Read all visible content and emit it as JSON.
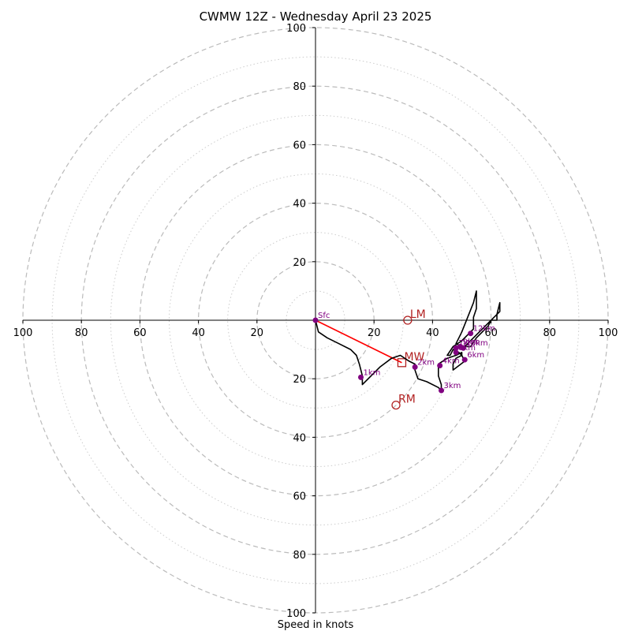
{
  "chart_data": {
    "type": "line",
    "title": "CWMW 12Z - Wednesday April 23 2025",
    "xlabel": "Speed in knots",
    "xlim": [
      -100,
      100
    ],
    "ylim": [
      -100,
      100
    ],
    "ring_labels": [
      "20",
      "40",
      "60",
      "80",
      "100"
    ],
    "major_rings": [
      20,
      40,
      60,
      80,
      100
    ],
    "minor_rings": [
      10,
      30,
      50,
      70,
      90
    ],
    "grid": true,
    "hodograph": {
      "color": "#000000",
      "points": [
        [
          0,
          0
        ],
        [
          1,
          -4
        ],
        [
          4,
          -6
        ],
        [
          8,
          -8
        ],
        [
          12,
          -10
        ],
        [
          14,
          -12
        ],
        [
          15,
          -15
        ],
        [
          16,
          -19
        ],
        [
          16,
          -22
        ],
        [
          18,
          -20
        ],
        [
          22,
          -16
        ],
        [
          26,
          -13
        ],
        [
          29,
          -12
        ],
        [
          32,
          -14
        ],
        [
          34,
          -15
        ],
        [
          34,
          -17
        ],
        [
          35,
          -20
        ],
        [
          38,
          -21
        ],
        [
          42,
          -23
        ],
        [
          43,
          -24
        ],
        [
          43,
          -22
        ],
        [
          42,
          -19
        ],
        [
          42,
          -17
        ],
        [
          42,
          -15
        ],
        [
          45,
          -13
        ],
        [
          48,
          -12
        ],
        [
          50,
          -11
        ],
        [
          50,
          -12
        ],
        [
          48,
          -13
        ],
        [
          47,
          -15
        ],
        [
          47,
          -17
        ],
        [
          51,
          -14
        ],
        [
          50,
          -12
        ],
        [
          49,
          -11
        ],
        [
          47,
          -10
        ],
        [
          46,
          -12
        ],
        [
          45,
          -12
        ],
        [
          47,
          -9
        ],
        [
          50,
          -7
        ],
        [
          52,
          -5
        ],
        [
          54,
          -3
        ],
        [
          54,
          1
        ],
        [
          55,
          4
        ],
        [
          55,
          10
        ],
        [
          54,
          6
        ],
        [
          52,
          1
        ],
        [
          50,
          -4
        ],
        [
          49,
          -6
        ],
        [
          48,
          -8
        ],
        [
          50,
          -9
        ],
        [
          53,
          -9
        ],
        [
          55,
          -6
        ],
        [
          57,
          -4
        ],
        [
          59,
          -2
        ],
        [
          60,
          0
        ],
        [
          61,
          1
        ],
        [
          63,
          3
        ],
        [
          63,
          6
        ],
        [
          62,
          2
        ],
        [
          62,
          0
        ],
        [
          60,
          0
        ],
        [
          58,
          -2
        ],
        [
          55,
          -5
        ],
        [
          53,
          -7
        ],
        [
          51,
          -9
        ]
      ]
    },
    "height_markers": [
      {
        "label": "Sfc",
        "x": 0,
        "y": 0
      },
      {
        "label": "1km",
        "x": 15.5,
        "y": -19.5
      },
      {
        "label": "2km",
        "x": 34,
        "y": -16
      },
      {
        "label": "3km",
        "x": 43,
        "y": -24
      },
      {
        "label": "4km",
        "x": 42.5,
        "y": -15.5
      },
      {
        "label": "6km",
        "x": 51,
        "y": -13.5
      },
      {
        "label": "7km",
        "x": 48,
        "y": -9.5
      },
      {
        "label": "8km",
        "x": 48,
        "y": -11
      },
      {
        "label": "9km",
        "x": 49.5,
        "y": -9
      },
      {
        "label": "10km",
        "x": 50.5,
        "y": -9.5
      },
      {
        "label": "12km",
        "x": 53,
        "y": -4.5
      }
    ],
    "marker_color": "#800080",
    "storm_motion": {
      "color": "#b22222",
      "line_color": "#ff0000",
      "LM": {
        "label": "LM",
        "x": 31.5,
        "y": 0
      },
      "MW": {
        "label": "MW",
        "x": 29.5,
        "y": -14.5
      },
      "RM": {
        "label": "RM",
        "x": 27.5,
        "y": -29
      }
    }
  }
}
